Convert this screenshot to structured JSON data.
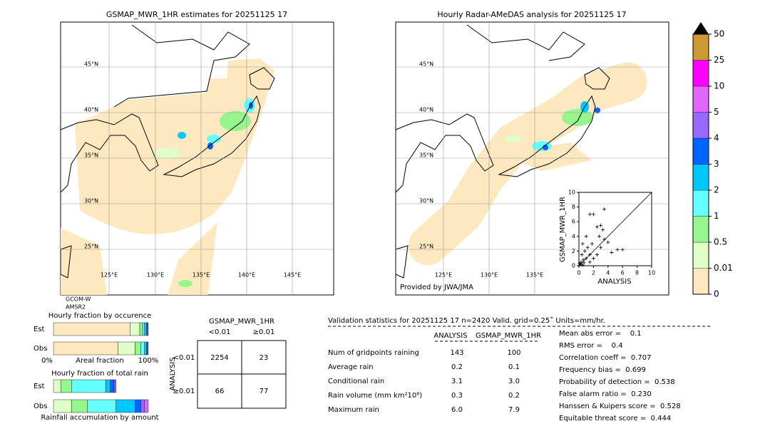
{
  "left_map": {
    "title": "GSMAP_MWR_1HR estimates for 20251125 17",
    "lat_labels": [
      "45°N",
      "40°N",
      "35°N",
      "30°N",
      "25°N"
    ],
    "lon_labels": [
      "125°E",
      "130°E",
      "135°E",
      "140°E",
      "145°E"
    ],
    "satellite": [
      "GCOM-W",
      "AMSR2"
    ]
  },
  "right_map": {
    "title": "Hourly Radar-AMeDAS analysis for 20251125 17",
    "lat_labels": [
      "45°N",
      "40°N",
      "35°N",
      "30°N",
      "25°N"
    ],
    "lon_labels": [
      "125°E",
      "130°E",
      "135°E"
    ],
    "credit": "Provided by JWA/JMA"
  },
  "colorbar": {
    "ticks": [
      0,
      0.01,
      0.5,
      1,
      2,
      3,
      4,
      5,
      10,
      25,
      50
    ],
    "colors": [
      "#fde8c0",
      "#e0ffc8",
      "#96f58c",
      "#66ffff",
      "#00c8ff",
      "#0064ff",
      "#9966ff",
      "#e066ff",
      "#ff00ff",
      "#cc9933"
    ],
    "over_color": "#000000"
  },
  "scatter": {
    "type": "scatter",
    "xlabel": "ANALYSIS",
    "ylabel": "GSMAP_MWR_1HR",
    "xlim": [
      0,
      10
    ],
    "ylim": [
      0,
      10
    ],
    "xticks": [
      0,
      2,
      4,
      6,
      8,
      10
    ],
    "yticks": [
      0,
      2,
      4,
      6,
      8,
      10
    ],
    "x": [
      1.5,
      2,
      3.5,
      2.5,
      3,
      3.3,
      2.8,
      3.5,
      4,
      5.3,
      6,
      4.5,
      1,
      0.5,
      1.2,
      0.8,
      1.5,
      2,
      0.3,
      0.6,
      1,
      0.2,
      0.5,
      1.5,
      2.5,
      3,
      1.8,
      0.4,
      0.1,
      0.7
    ],
    "y": [
      7,
      7,
      7.7,
      5.3,
      5.5,
      4.9,
      4,
      3.6,
      3.2,
      2.2,
      2.2,
      1.8,
      4,
      3,
      2.5,
      2,
      1.5,
      1,
      0.5,
      0.8,
      1,
      0.2,
      0.1,
      0.5,
      1.5,
      2.5,
      3,
      1.5,
      0.3,
      0.4
    ]
  },
  "occurrence": {
    "title": "Hourly fraction by occurence",
    "rows": [
      "Est",
      "Obs"
    ],
    "xlabel": "Areal fraction",
    "xmin_label": "0%",
    "xmax_label": "100%",
    "series": [
      [
        81,
        10,
        3,
        2,
        2,
        1,
        1,
        0,
        0,
        0
      ],
      [
        68,
        18,
        6,
        4,
        2,
        1,
        1,
        0,
        0,
        0
      ]
    ]
  },
  "total": {
    "title": "Hourly fraction of total rain",
    "rows": [
      "Est",
      "Obs"
    ],
    "xlabel": "Rainfall accumulation by amount",
    "series": [
      [
        0,
        8,
        11,
        36,
        5,
        4,
        2,
        0,
        0,
        0
      ],
      [
        0,
        19,
        17,
        30,
        20,
        6,
        4,
        4,
        0,
        0
      ]
    ]
  },
  "contingency": {
    "title": "GSMAP_MWR_1HR",
    "columns": [
      "<0.01",
      "≥0.01"
    ],
    "rows_title": "ANALYSIS",
    "rows": [
      "<0.01",
      "≥0.01"
    ],
    "cells": [
      [
        2254,
        23
      ],
      [
        66,
        77
      ]
    ]
  },
  "validation": {
    "header": "Validation statistics for 20251125 17  n=2420 Valid. grid=0.25˚ Units=mm/hr.",
    "columns": [
      "ANALYSIS",
      "GSMAP_MWR_1HR"
    ],
    "rows": [
      [
        "Num of gridpoints raining",
        "143",
        "100"
      ],
      [
        "Average rain",
        "0.2",
        "0.1"
      ],
      [
        "Conditional rain",
        "3.1",
        "3.0"
      ],
      [
        "Rain volume (mm km²10⁶)",
        "0.3",
        "0.2"
      ],
      [
        "Maximum rain",
        "6.0",
        "7.9"
      ]
    ],
    "scores": [
      "Mean abs error =    0.1",
      "RMS error =    0.4",
      "Correlation coeff =  0.707",
      "Frequency bias =  0.699",
      "Probability of detection =  0.538",
      "False alarm ratio =  0.230",
      "Hanssen & Kuipers score =  0.528",
      "Equitable threat score =  0.444"
    ]
  }
}
